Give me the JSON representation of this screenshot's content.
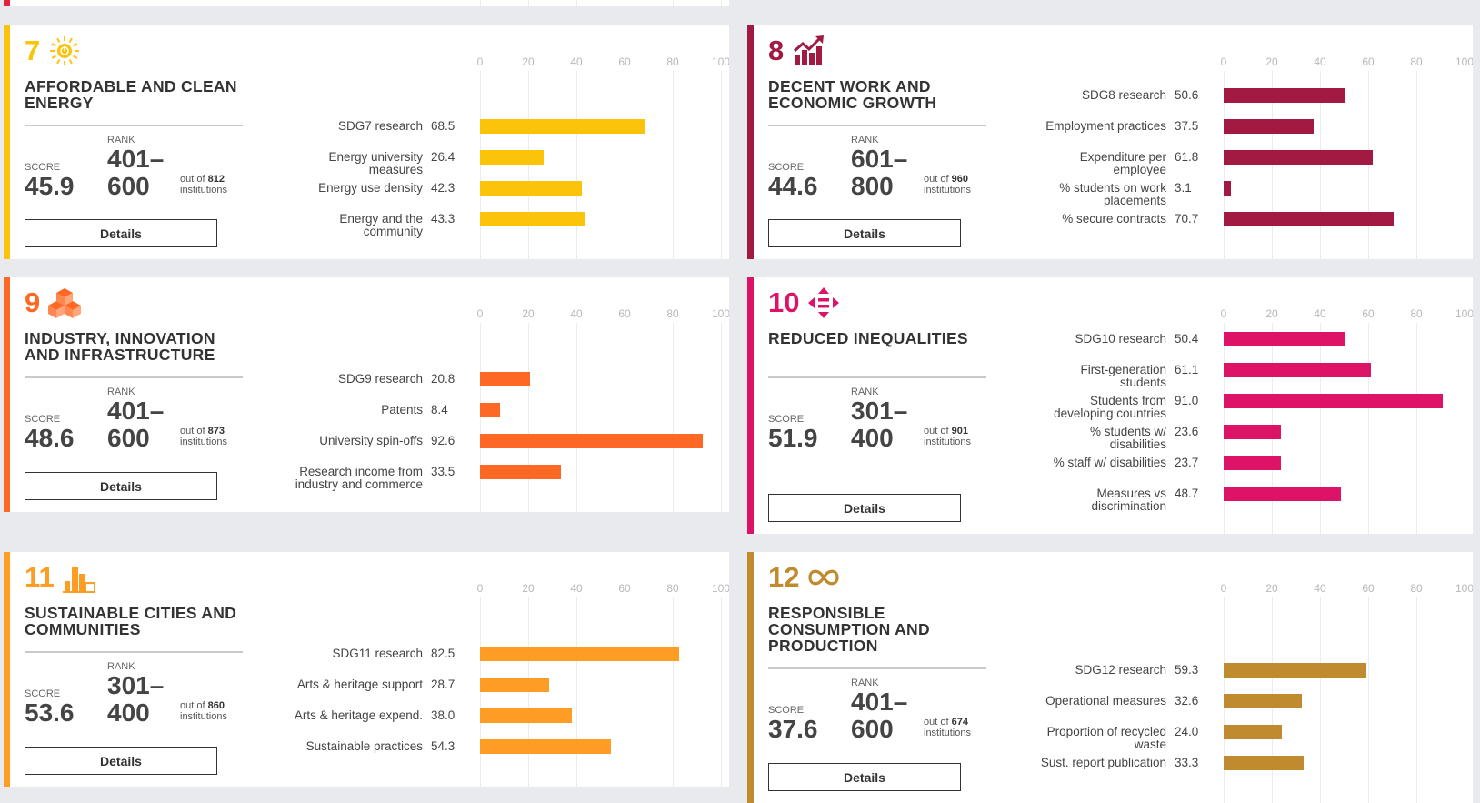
{
  "axis_ticks": [
    "0",
    "20",
    "40",
    "60",
    "80",
    "100"
  ],
  "top_partial_card": {
    "color": "#e5243b"
  },
  "cards": [
    {
      "number": "7",
      "icon": "sun-power-icon",
      "title": "AFFORDABLE AND CLEAN\nENERGY",
      "color": "#fcc30b",
      "score_label": "SCORE",
      "score": "45.9",
      "rank_label": "RANK",
      "rank_top": "401–",
      "rank_bottom": "600",
      "out_of_prefix": "out of",
      "out_of": "812",
      "institutions": "institutions",
      "details": "Details",
      "metrics": [
        {
          "label": "SDG7 research",
          "value": 68.5,
          "value_text": "68.5"
        },
        {
          "label": "Energy university\nmeasures",
          "value": 26.4,
          "value_text": "26.4"
        },
        {
          "label": "Energy use density",
          "value": 42.3,
          "value_text": "42.3"
        },
        {
          "label": "Energy and the\ncommunity",
          "value": 43.3,
          "value_text": "43.3"
        }
      ]
    },
    {
      "number": "8",
      "icon": "growth-chart-icon",
      "title": "DECENT WORK AND\nECONOMIC GROWTH",
      "color": "#a21942",
      "score_label": "SCORE",
      "score": "44.6",
      "rank_label": "RANK",
      "rank_top": "601–",
      "rank_bottom": "800",
      "out_of_prefix": "out of",
      "out_of": "960",
      "institutions": "institutions",
      "details": "Details",
      "metrics": [
        {
          "label": "SDG8 research",
          "value": 50.6,
          "value_text": "50.6"
        },
        {
          "label": "Employment practices",
          "value": 37.5,
          "value_text": "37.5"
        },
        {
          "label": "Expenditure per\nemployee",
          "value": 61.8,
          "value_text": "61.8"
        },
        {
          "label": "% students on work\nplacements",
          "value": 3.1,
          "value_text": "3.1"
        },
        {
          "label": "% secure contracts",
          "value": 70.7,
          "value_text": "70.7"
        }
      ]
    },
    {
      "number": "9",
      "icon": "cubes-icon",
      "title": "INDUSTRY, INNOVATION\nAND INFRASTRUCTURE",
      "color": "#fd6925",
      "score_label": "SCORE",
      "score": "48.6",
      "rank_label": "RANK",
      "rank_top": "401–",
      "rank_bottom": "600",
      "out_of_prefix": "out of",
      "out_of": "873",
      "institutions": "institutions",
      "details": "Details",
      "metrics": [
        {
          "label": "SDG9 research",
          "value": 20.8,
          "value_text": "20.8"
        },
        {
          "label": "Patents",
          "value": 8.4,
          "value_text": "8.4"
        },
        {
          "label": "University spin-offs",
          "value": 92.6,
          "value_text": "92.6"
        },
        {
          "label": "Research income from\nindustry and commerce",
          "value": 33.5,
          "value_text": "33.5"
        }
      ]
    },
    {
      "number": "10",
      "icon": "equality-arrows-icon",
      "title": "REDUCED INEQUALITIES",
      "color": "#dd1367",
      "score_label": "SCORE",
      "score": "51.9",
      "rank_label": "RANK",
      "rank_top": "301–",
      "rank_bottom": "400",
      "out_of_prefix": "out of",
      "out_of": "901",
      "institutions": "institutions",
      "details": "Details",
      "metrics": [
        {
          "label": "SDG10 research",
          "value": 50.4,
          "value_text": "50.4"
        },
        {
          "label": "First-generation\nstudents",
          "value": 61.1,
          "value_text": "61.1"
        },
        {
          "label": "Students from\ndeveloping countries",
          "value": 91.0,
          "value_text": "91.0"
        },
        {
          "label": "% students w/\ndisabilities",
          "value": 23.6,
          "value_text": "23.6"
        },
        {
          "label": "% staff w/ disabilities",
          "value": 23.7,
          "value_text": "23.7"
        },
        {
          "label": "Measures vs\ndiscrimination",
          "value": 48.7,
          "value_text": "48.7"
        }
      ]
    },
    {
      "number": "11",
      "icon": "city-buildings-icon",
      "title": "SUSTAINABLE CITIES AND\nCOMMUNITIES",
      "color": "#fd9d24",
      "score_label": "SCORE",
      "score": "53.6",
      "rank_label": "RANK",
      "rank_top": "301–",
      "rank_bottom": "400",
      "out_of_prefix": "out of",
      "out_of": "860",
      "institutions": "institutions",
      "details": "Details",
      "metrics": [
        {
          "label": "SDG11 research",
          "value": 82.5,
          "value_text": "82.5"
        },
        {
          "label": "Arts & heritage support",
          "value": 28.7,
          "value_text": "28.7"
        },
        {
          "label": "Arts & heritage expend.",
          "value": 38.0,
          "value_text": "38.0"
        },
        {
          "label": "Sustainable practices",
          "value": 54.3,
          "value_text": "54.3"
        }
      ]
    },
    {
      "number": "12",
      "icon": "infinity-icon",
      "title": "RESPONSIBLE\nCONSUMPTION AND\nPRODUCTION",
      "color": "#bf8b2e",
      "score_label": "SCORE",
      "score": "37.6",
      "rank_label": "RANK",
      "rank_top": "401–",
      "rank_bottom": "600",
      "out_of_prefix": "out of",
      "out_of": "674",
      "institutions": "institutions",
      "details": "Details",
      "metrics": [
        {
          "label": "SDG12 research",
          "value": 59.3,
          "value_text": "59.3"
        },
        {
          "label": "Operational measures",
          "value": 32.6,
          "value_text": "32.6"
        },
        {
          "label": "Proportion of recycled\nwaste",
          "value": 24.0,
          "value_text": "24.0"
        },
        {
          "label": "Sust. report publication",
          "value": 33.3,
          "value_text": "33.3"
        }
      ]
    }
  ]
}
